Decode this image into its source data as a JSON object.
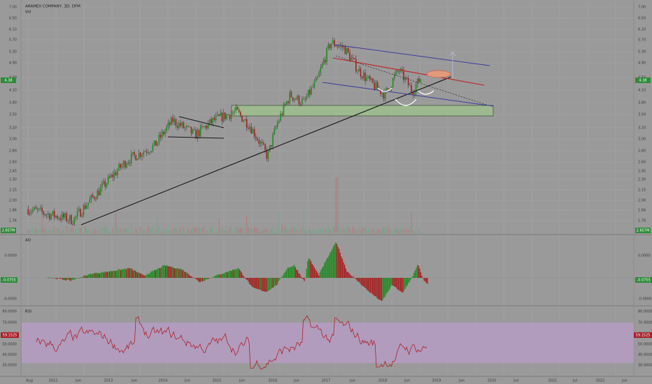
{
  "header": {
    "symbol_line": "ARAMEX COMPANY, 3D, DFM",
    "vol_label": "Vol"
  },
  "colors": {
    "bg": "#9a9a9a",
    "grid": "#a6a6a6",
    "axis_text": "#3a3a3a",
    "up": "#1f8a1f",
    "down": "#a41e1e",
    "wick": "#2b2b2b",
    "trend": "#151515",
    "channel": "#3c3c9a",
    "red_line": "#c02020",
    "zone_fill": "#9fbf8f",
    "zone_stroke": "#2f4f2f",
    "ao_up": "#1f8a1f",
    "ao_down": "#a41e1e",
    "rsi_band": "#b89cc8",
    "rsi_line": "#b0202a",
    "price_badge": "#2e8b3a",
    "ao_badge": "#2e8b3a",
    "rsi_badge": "#a8202a"
  },
  "price_axis": {
    "ticks": [
      "7.00",
      "6.50",
      "6.10",
      "5.70",
      "5.30",
      "4.90",
      "4.50",
      "4.10",
      "3.80",
      "3.50",
      "3.20",
      "3.00",
      "2.80",
      "2.60",
      "2.45",
      "2.30",
      "2.15",
      "2.00",
      "1.86",
      "1.76"
    ]
  },
  "badges": {
    "price": "4.38",
    "volume": "2.657M",
    "ao": "-0.0755",
    "rsi": "59.1525"
  },
  "ao_panel": {
    "label": "AO",
    "ticks": [
      "0.0000",
      "-0.0000"
    ]
  },
  "rsi_panel": {
    "label": "RSI",
    "ticks": [
      "80.0000",
      "70.0000",
      "60.0000",
      "50.0000",
      "40.0000",
      "30.0000"
    ]
  },
  "time_axis": {
    "labels": [
      "Aug",
      "2012",
      "Jun",
      "2013",
      "Jun",
      "2014",
      "Jun",
      "2015",
      "Jun",
      "2016",
      "Jun",
      "2017",
      "Jun",
      "2018",
      "Jun",
      "2019",
      "Jun",
      "2020",
      "Jun",
      "2021",
      "Jul",
      "2022",
      "Jun"
    ]
  },
  "chart_data": [
    {
      "type": "candlestick",
      "title": "ARAMEX COMPANY, 3D, DFM",
      "x_range": [
        "2011-08",
        "2022-06"
      ],
      "ylim": [
        1.6,
        7.1
      ],
      "log_scale": true,
      "last_price": 4.38,
      "series": [
        {
          "name": "Price",
          "x": [
            "2011-08",
            "2012-01",
            "2012-06",
            "2012-12",
            "2013-06",
            "2013-12",
            "2014-04",
            "2014-09",
            "2015-01",
            "2015-06",
            "2015-09",
            "2016-01",
            "2016-03",
            "2016-06",
            "2016-09",
            "2016-12",
            "2017-03",
            "2017-06",
            "2017-09",
            "2017-12",
            "2018-03",
            "2018-06",
            "2018-09",
            "2018-11"
          ],
          "values": [
            1.85,
            1.78,
            1.72,
            2.1,
            2.55,
            2.8,
            3.3,
            3.0,
            3.3,
            3.5,
            3.2,
            2.6,
            3.2,
            3.9,
            3.7,
            4.3,
            5.5,
            5.3,
            4.6,
            4.2,
            3.9,
            4.6,
            4.0,
            4.38
          ]
        }
      ],
      "volume": {
        "last": "2.657M"
      }
    },
    {
      "type": "bar",
      "title": "AO",
      "ylim": [
        -0.55,
        0.6
      ],
      "last_value": -0.0755
    },
    {
      "type": "line",
      "title": "RSI",
      "ylim": [
        25,
        85
      ],
      "band": [
        30,
        70
      ],
      "last_value": 59.1525
    }
  ],
  "drawings": {
    "items": [
      "long-term-trendline",
      "descending-channel",
      "red-neckline",
      "demand-zone",
      "head-and-shoulders-arcs",
      "target-arrow",
      "target-ellipse",
      "consolidation-triangle"
    ]
  }
}
